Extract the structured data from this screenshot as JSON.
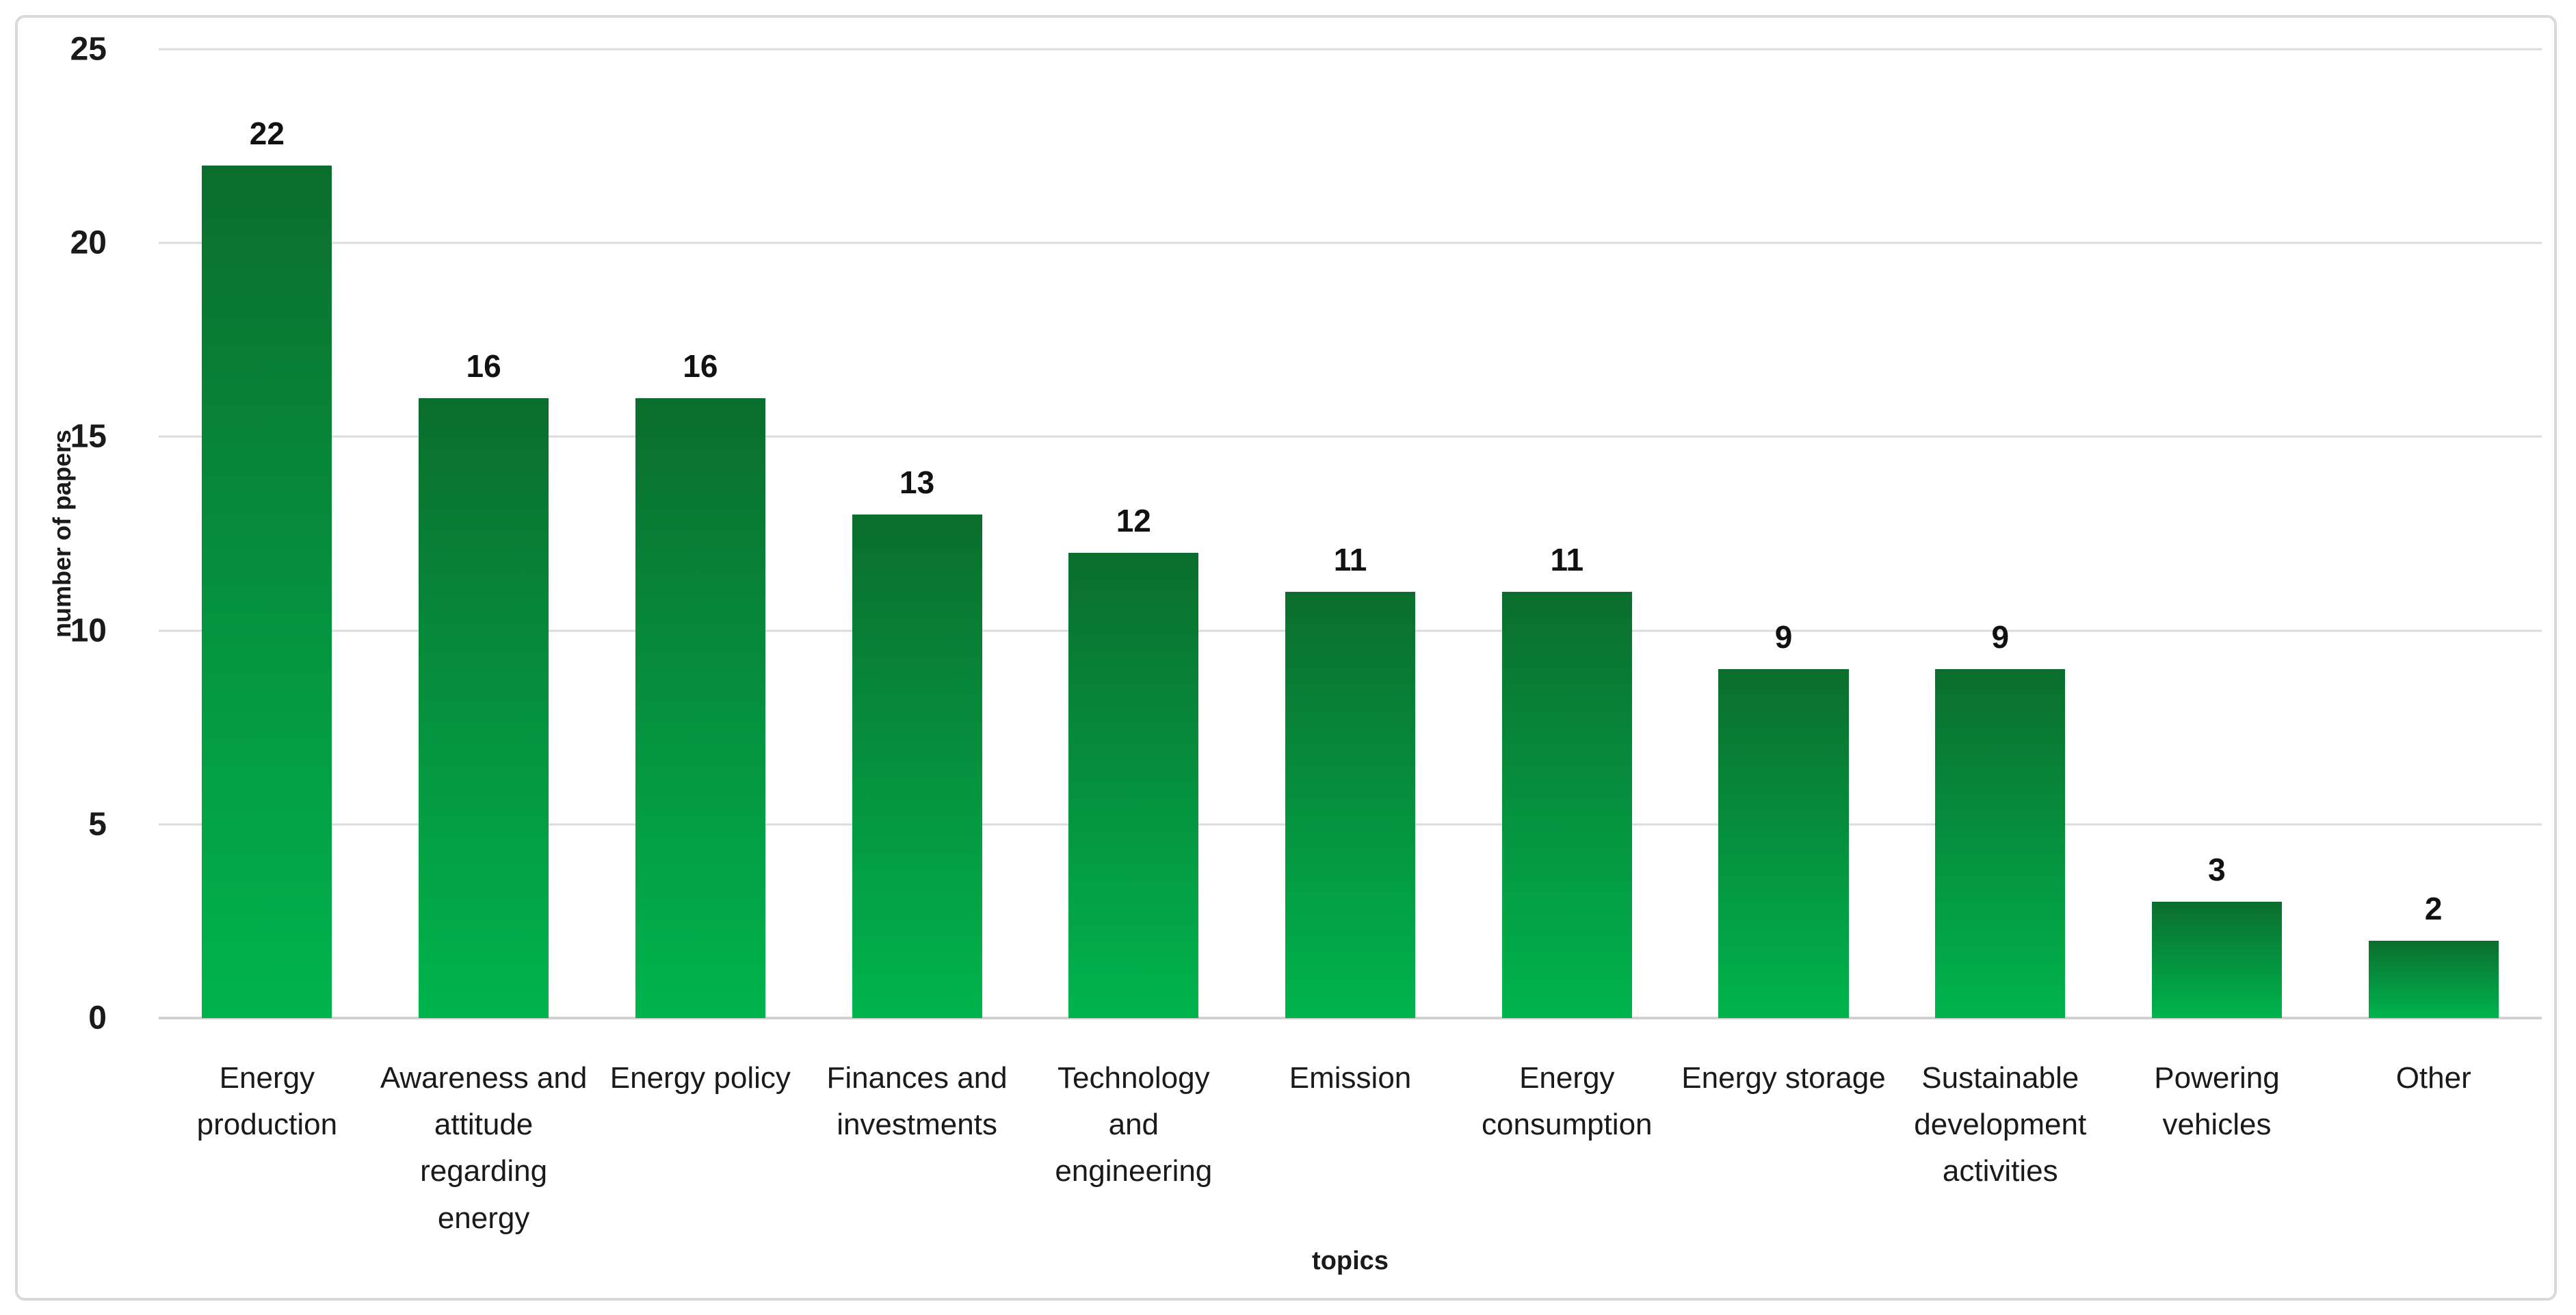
{
  "figure": {
    "background": "#ffffff",
    "border_color": "#d9d9d9"
  },
  "chart_data": {
    "type": "bar",
    "title": "",
    "xlabel": "topics",
    "ylabel": "number of papers",
    "categories": [
      "Energy production",
      "Awareness and attitude regarding energy",
      "Energy policy",
      "Finances and investments",
      "Technology and engineering",
      "Emission",
      "Energy consumption",
      "Energy storage",
      "Sustainable development activities",
      "Powering vehicles",
      "Other"
    ],
    "values": [
      22,
      16,
      16,
      13,
      12,
      11,
      11,
      9,
      9,
      3,
      2
    ],
    "data_labels": [
      "22",
      "16",
      "16",
      "13",
      "12",
      "11",
      "11",
      "9",
      "9",
      "3",
      "2"
    ],
    "ylim": [
      0,
      25
    ],
    "yticks": [
      25,
      20,
      15,
      10,
      5,
      0
    ],
    "grid": "horizontal",
    "legend": "none",
    "colors": {
      "bar_gradient_top": "#0b6e2e",
      "bar_gradient_bottom": "#00b44d",
      "gridline": "#dbdbdb",
      "axis_line": "#d2d2d2",
      "text": "#1a1a1a"
    }
  }
}
